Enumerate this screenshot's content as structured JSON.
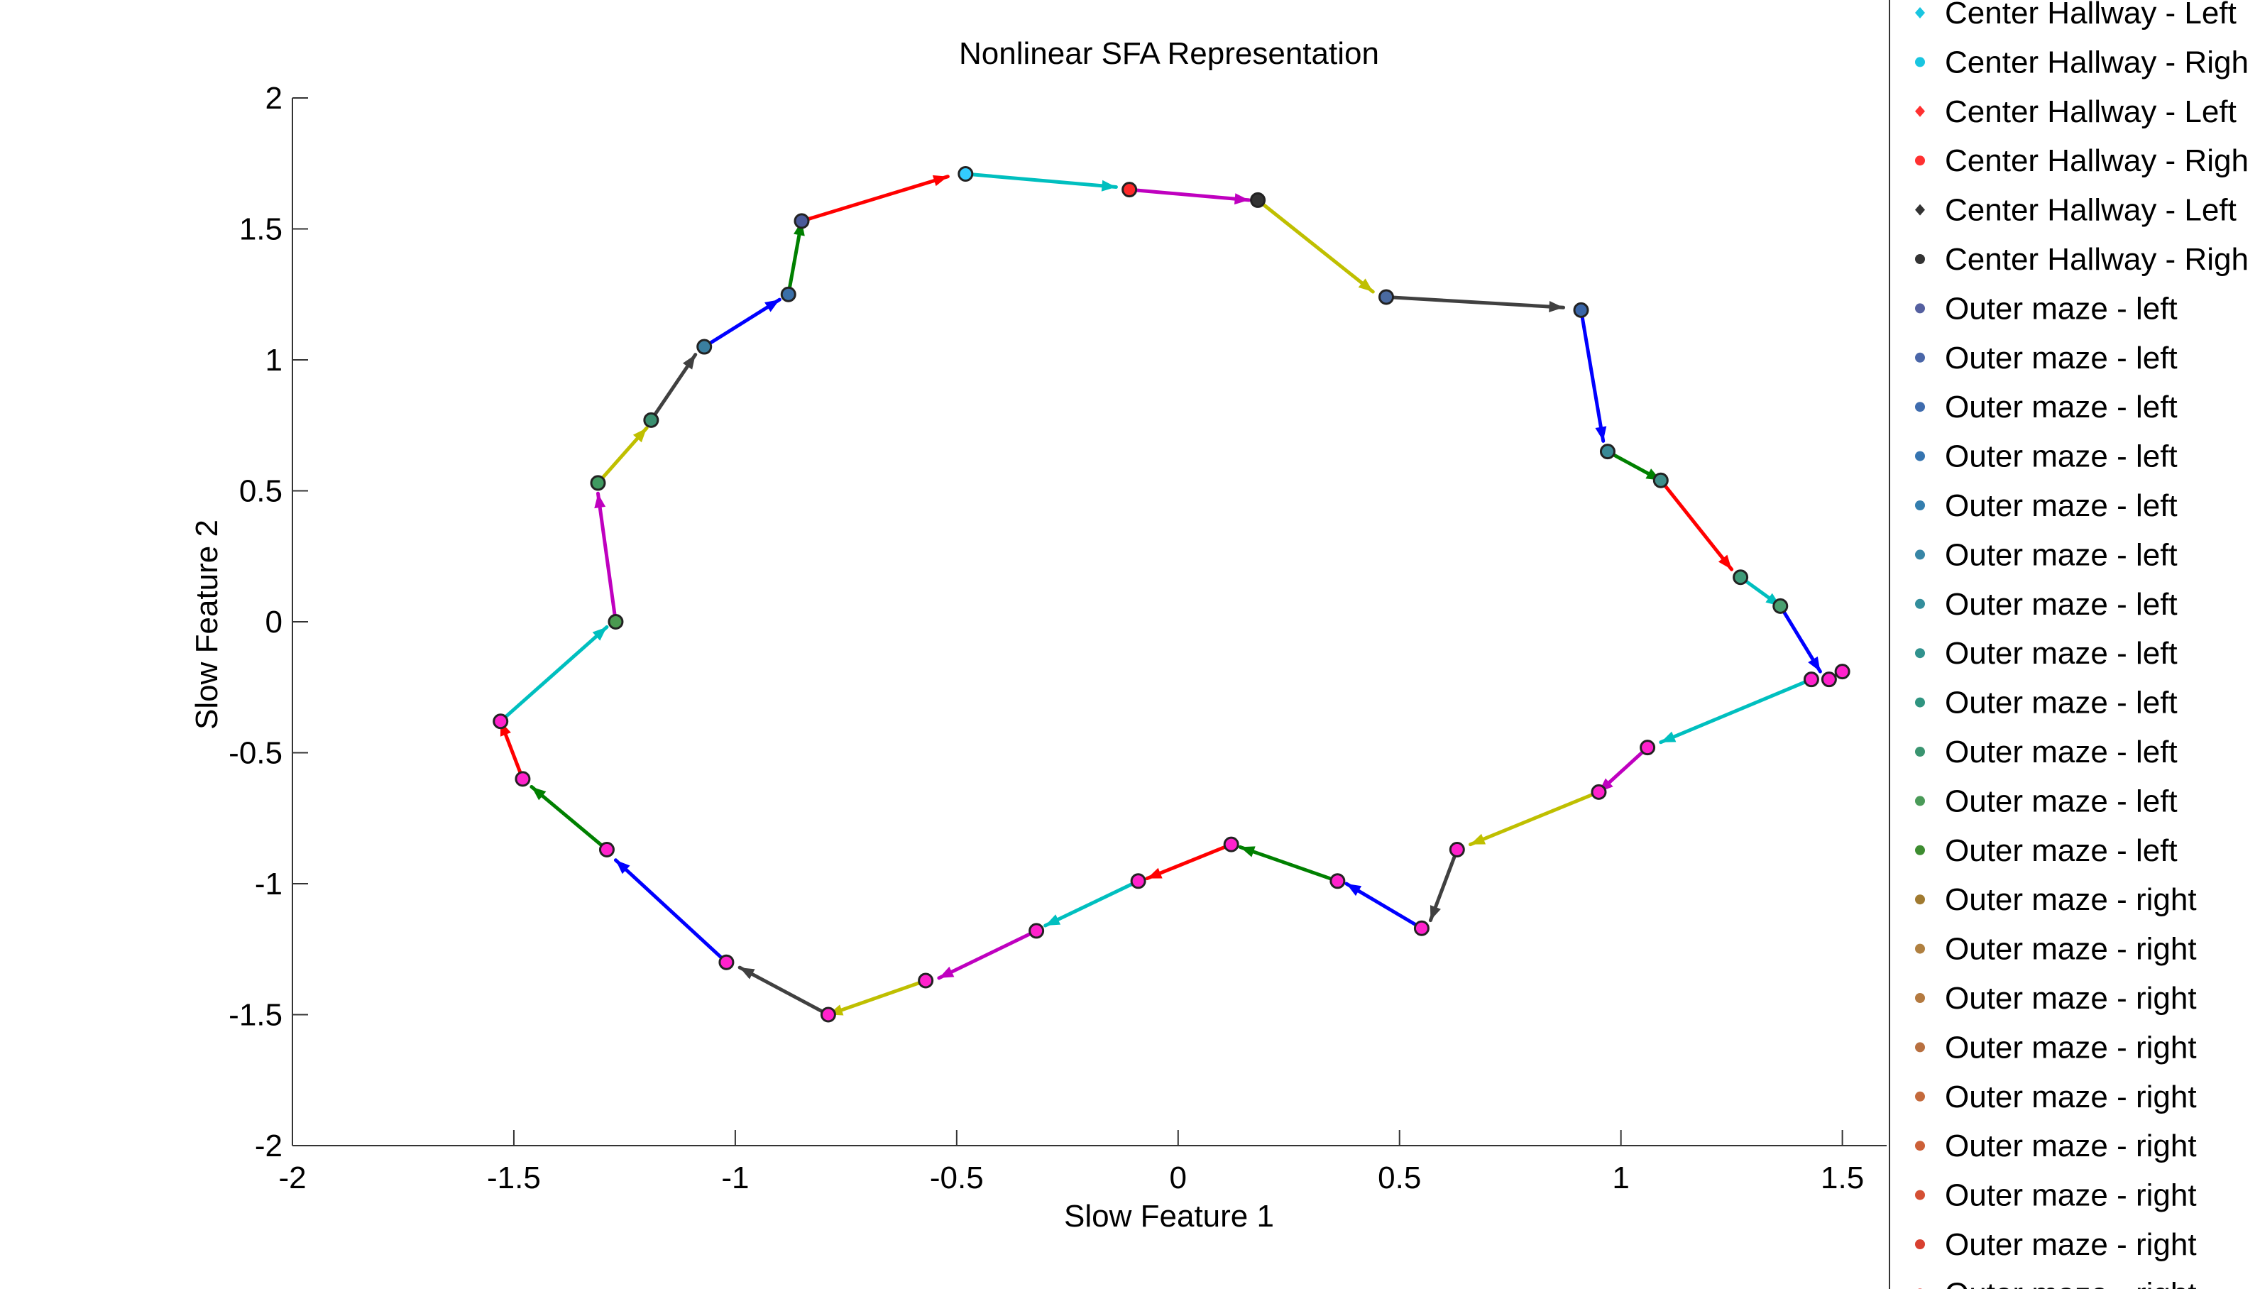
{
  "chart_data": {
    "type": "line",
    "title": "Nonlinear SFA Representation",
    "xlabel": "Slow Feature 1",
    "ylabel": "Slow Feature 2",
    "xlim": [
      -2,
      1.6
    ],
    "ylim": [
      -2,
      2
    ],
    "xticks": [
      -2,
      -1.5,
      -1,
      -0.5,
      0,
      0.5,
      1,
      1.5
    ],
    "xtick_labels": [
      "-2",
      "-1.5",
      "-1",
      "-0.5",
      "0",
      "0.5",
      "1",
      "1.5"
    ],
    "yticks": [
      -2,
      -1.5,
      -1,
      -0.5,
      0,
      0.5,
      1,
      1.5,
      2
    ],
    "ytick_labels": [
      "-2",
      "-1.5",
      "-1",
      "-0.5",
      "0",
      "0.5",
      "1",
      "1.5",
      "2"
    ],
    "grid": false,
    "legend_position": "right",
    "points": [
      {
        "x": -0.48,
        "y": 1.71,
        "color": "#33ccff"
      },
      {
        "x": -0.11,
        "y": 1.65,
        "color": "#ff2a2a"
      },
      {
        "x": 0.18,
        "y": 1.61,
        "color": "#333333"
      },
      {
        "x": 0.47,
        "y": 1.24,
        "color": "#4a6aa0"
      },
      {
        "x": 0.91,
        "y": 1.19,
        "color": "#3a66a8"
      },
      {
        "x": 0.97,
        "y": 0.65,
        "color": "#3a8a96"
      },
      {
        "x": 1.09,
        "y": 0.54,
        "color": "#3f8f8a"
      },
      {
        "x": 1.27,
        "y": 0.17,
        "color": "#3f9a78"
      },
      {
        "x": 1.36,
        "y": 0.06,
        "color": "#4aa070"
      },
      {
        "x": 1.43,
        "y": -0.22,
        "color": "#ff22cc"
      },
      {
        "x": 1.47,
        "y": -0.22,
        "color": "#ff22cc"
      },
      {
        "x": 1.5,
        "y": -0.19,
        "color": "#ff22cc"
      },
      {
        "x": 1.06,
        "y": -0.48,
        "color": "#ff22cc"
      },
      {
        "x": 0.95,
        "y": -0.65,
        "color": "#ff22cc"
      },
      {
        "x": 0.63,
        "y": -0.87,
        "color": "#ff22cc"
      },
      {
        "x": 0.55,
        "y": -1.17,
        "color": "#ff22cc"
      },
      {
        "x": 0.36,
        "y": -0.99,
        "color": "#ff22cc"
      },
      {
        "x": 0.12,
        "y": -0.85,
        "color": "#ff22cc"
      },
      {
        "x": -0.09,
        "y": -0.99,
        "color": "#ff22cc"
      },
      {
        "x": -0.32,
        "y": -1.18,
        "color": "#ff22cc"
      },
      {
        "x": -0.57,
        "y": -1.37,
        "color": "#ff22cc"
      },
      {
        "x": -0.79,
        "y": -1.5,
        "color": "#ff22cc"
      },
      {
        "x": -1.02,
        "y": -1.3,
        "color": "#ff22cc"
      },
      {
        "x": -1.29,
        "y": -0.87,
        "color": "#ff22cc"
      },
      {
        "x": -1.48,
        "y": -0.6,
        "color": "#ff22cc"
      },
      {
        "x": -1.53,
        "y": -0.38,
        "color": "#ff22cc"
      },
      {
        "x": -1.27,
        "y": 0.0,
        "color": "#4a9a50"
      },
      {
        "x": -1.31,
        "y": 0.53,
        "color": "#3f9a60"
      },
      {
        "x": -1.19,
        "y": 0.77,
        "color": "#3a8f70"
      },
      {
        "x": -1.07,
        "y": 1.05,
        "color": "#3a7fa0"
      },
      {
        "x": -0.88,
        "y": 1.25,
        "color": "#3a6fa8"
      },
      {
        "x": -0.85,
        "y": 1.53,
        "color": "#4a5a9a"
      }
    ],
    "segments": [
      {
        "from": [
          -0.48,
          1.71
        ],
        "to": [
          -0.14,
          1.66
        ],
        "color": "#00bfbf"
      },
      {
        "from": [
          -0.11,
          1.65
        ],
        "to": [
          0.16,
          1.61
        ],
        "color": "#bf00bf"
      },
      {
        "from": [
          0.18,
          1.61
        ],
        "to": [
          0.44,
          1.26
        ],
        "color": "#bfbf00"
      },
      {
        "from": [
          0.47,
          1.24
        ],
        "to": [
          0.87,
          1.2
        ],
        "color": "#404040"
      },
      {
        "from": [
          0.91,
          1.19
        ],
        "to": [
          0.96,
          0.69
        ],
        "color": "#0000ff"
      },
      {
        "from": [
          0.97,
          0.65
        ],
        "to": [
          1.09,
          0.54
        ],
        "color": "#008000"
      },
      {
        "from": [
          1.09,
          0.54
        ],
        "to": [
          1.25,
          0.2
        ],
        "color": "#ff0000"
      },
      {
        "from": [
          1.27,
          0.17
        ],
        "to": [
          1.36,
          0.06
        ],
        "color": "#00bfbf"
      },
      {
        "from": [
          1.36,
          0.06
        ],
        "to": [
          1.45,
          -0.19
        ],
        "color": "#0000ff"
      },
      {
        "from": [
          1.43,
          -0.22
        ],
        "to": [
          1.09,
          -0.46
        ],
        "color": "#00bfbf"
      },
      {
        "from": [
          1.06,
          -0.48
        ],
        "to": [
          0.95,
          -0.65
        ],
        "color": "#bf00bf"
      },
      {
        "from": [
          0.95,
          -0.65
        ],
        "to": [
          0.66,
          -0.85
        ],
        "color": "#bfbf00"
      },
      {
        "from": [
          0.63,
          -0.87
        ],
        "to": [
          0.57,
          -1.14
        ],
        "color": "#404040"
      },
      {
        "from": [
          0.55,
          -1.17
        ],
        "to": [
          0.38,
          -1.0
        ],
        "color": "#0000ff"
      },
      {
        "from": [
          0.36,
          -0.99
        ],
        "to": [
          0.14,
          -0.86
        ],
        "color": "#008000"
      },
      {
        "from": [
          0.12,
          -0.85
        ],
        "to": [
          -0.07,
          -0.98
        ],
        "color": "#ff0000"
      },
      {
        "from": [
          -0.09,
          -0.99
        ],
        "to": [
          -0.3,
          -1.16
        ],
        "color": "#00bfbf"
      },
      {
        "from": [
          -0.32,
          -1.18
        ],
        "to": [
          -0.54,
          -1.36
        ],
        "color": "#bf00bf"
      },
      {
        "from": [
          -0.57,
          -1.37
        ],
        "to": [
          -0.79,
          -1.5
        ],
        "color": "#bfbf00"
      },
      {
        "from": [
          -0.79,
          -1.5
        ],
        "to": [
          -0.99,
          -1.32
        ],
        "color": "#404040"
      },
      {
        "from": [
          -1.02,
          -1.3
        ],
        "to": [
          -1.27,
          -0.91
        ],
        "color": "#0000ff"
      },
      {
        "from": [
          -1.29,
          -0.87
        ],
        "to": [
          -1.46,
          -0.63
        ],
        "color": "#008000"
      },
      {
        "from": [
          -1.48,
          -0.6
        ],
        "to": [
          -1.53,
          -0.38
        ],
        "color": "#ff0000"
      },
      {
        "from": [
          -1.53,
          -0.38
        ],
        "to": [
          -1.29,
          -0.02
        ],
        "color": "#00bfbf"
      },
      {
        "from": [
          -1.27,
          0.0
        ],
        "to": [
          -1.31,
          0.49
        ],
        "color": "#bf00bf"
      },
      {
        "from": [
          -1.31,
          0.53
        ],
        "to": [
          -1.2,
          0.74
        ],
        "color": "#bfbf00"
      },
      {
        "from": [
          -1.19,
          0.77
        ],
        "to": [
          -1.09,
          1.02
        ],
        "color": "#404040"
      },
      {
        "from": [
          -1.07,
          1.05
        ],
        "to": [
          -0.9,
          1.23
        ],
        "color": "#0000ff"
      },
      {
        "from": [
          -0.88,
          1.25
        ],
        "to": [
          -0.85,
          1.53
        ],
        "color": "#008000"
      },
      {
        "from": [
          -0.85,
          1.53
        ],
        "to": [
          -0.52,
          1.7
        ],
        "color": "#ff0000"
      }
    ],
    "legend": [
      {
        "label": "Center Hallway - Left",
        "color": "#19c5e0",
        "marker": "diamond"
      },
      {
        "label": "Center Hallway - Righ",
        "color": "#19c5e0",
        "marker": "circle"
      },
      {
        "label": "Center Hallway - Left",
        "color": "#ff3030",
        "marker": "diamond"
      },
      {
        "label": "Center Hallway - Righ",
        "color": "#ff3030",
        "marker": "circle"
      },
      {
        "label": "Center Hallway - Left",
        "color": "#333333",
        "marker": "diamond"
      },
      {
        "label": "Center Hallway - Righ",
        "color": "#333333",
        "marker": "circle"
      },
      {
        "label": "Outer maze - left",
        "color": "#5560a0",
        "marker": "circle"
      },
      {
        "label": "Outer maze - left",
        "color": "#4a66a8",
        "marker": "circle"
      },
      {
        "label": "Outer maze - left",
        "color": "#3f6cae",
        "marker": "circle"
      },
      {
        "label": "Outer maze - left",
        "color": "#3574b0",
        "marker": "circle"
      },
      {
        "label": "Outer maze - left",
        "color": "#347eae",
        "marker": "circle"
      },
      {
        "label": "Outer maze - left",
        "color": "#3886a6",
        "marker": "circle"
      },
      {
        "label": "Outer maze - left",
        "color": "#338e9c",
        "marker": "circle"
      },
      {
        "label": "Outer maze - left",
        "color": "#31928e",
        "marker": "circle"
      },
      {
        "label": "Outer maze - left",
        "color": "#2f9480",
        "marker": "circle"
      },
      {
        "label": "Outer maze - left",
        "color": "#3a9470",
        "marker": "circle"
      },
      {
        "label": "Outer maze - left",
        "color": "#4a9a58",
        "marker": "circle"
      },
      {
        "label": "Outer maze - left",
        "color": "#3d8c30",
        "marker": "circle"
      },
      {
        "label": "Outer maze - right",
        "color": "#a07a30",
        "marker": "circle"
      },
      {
        "label": "Outer maze - right",
        "color": "#b08040",
        "marker": "circle"
      },
      {
        "label": "Outer maze - right",
        "color": "#b47a40",
        "marker": "circle"
      },
      {
        "label": "Outer maze - right",
        "color": "#b87040",
        "marker": "circle"
      },
      {
        "label": "Outer maze - right",
        "color": "#c46a3c",
        "marker": "circle"
      },
      {
        "label": "Outer maze - right",
        "color": "#cc6038",
        "marker": "circle"
      },
      {
        "label": "Outer maze - right",
        "color": "#d45034",
        "marker": "circle"
      },
      {
        "label": "Outer maze - right",
        "color": "#d84030",
        "marker": "circle"
      },
      {
        "label": "Outer maze - right",
        "color": "#e0302c",
        "marker": "circle"
      }
    ]
  }
}
